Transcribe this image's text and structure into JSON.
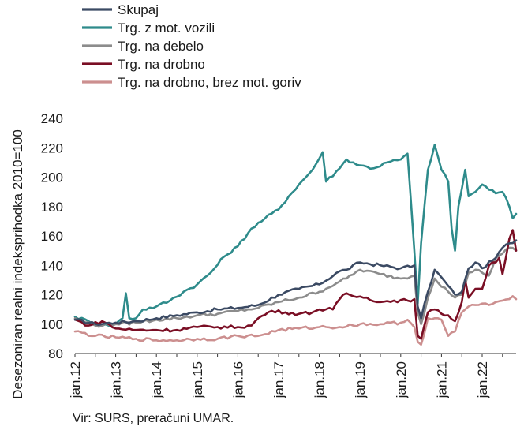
{
  "chart_data": {
    "type": "line",
    "title": "",
    "ylabel": "Desezoniran realni indeksprihodka 2010=100",
    "xlabel": "",
    "ylim": [
      80,
      240
    ],
    "yticks": [
      80,
      100,
      120,
      140,
      160,
      180,
      200,
      220,
      240
    ],
    "x_start": "2012-01",
    "x_end": "2022-06",
    "xticks": [
      "jan.12",
      "jan.13",
      "jan.14",
      "jan.15",
      "jan.16",
      "jan.17",
      "jan.18",
      "jan.19",
      "jan.20",
      "jan.21",
      "jan.22"
    ],
    "legend_position": "top-left",
    "grid": false,
    "source": "Vir: SURS, preračuni UMAR.",
    "series": [
      {
        "name": "Skupaj",
        "color": "#3b4a63",
        "anchors": [
          [
            0,
            103
          ],
          [
            6,
            100
          ],
          [
            12,
            101
          ],
          [
            18,
            102
          ],
          [
            24,
            104
          ],
          [
            30,
            106
          ],
          [
            36,
            108
          ],
          [
            42,
            110
          ],
          [
            48,
            111
          ],
          [
            54,
            113
          ],
          [
            60,
            120
          ],
          [
            66,
            124
          ],
          [
            72,
            127
          ],
          [
            78,
            136
          ],
          [
            80,
            137
          ],
          [
            84,
            142
          ],
          [
            90,
            140
          ],
          [
            96,
            138
          ],
          [
            100,
            140
          ],
          [
            101,
            112
          ],
          [
            102,
            104
          ],
          [
            104,
            122
          ],
          [
            106,
            137
          ],
          [
            110,
            126
          ],
          [
            112,
            120
          ],
          [
            114,
            122
          ],
          [
            116,
            138
          ],
          [
            118,
            142
          ],
          [
            120,
            138
          ],
          [
            124,
            145
          ],
          [
            126,
            152
          ],
          [
            128,
            155
          ],
          [
            130,
            157
          ]
        ]
      },
      {
        "name": "Trg. z mot. vozili",
        "color": "#2e8b8b",
        "anchors": [
          [
            0,
            105
          ],
          [
            4,
            102
          ],
          [
            8,
            99
          ],
          [
            12,
            100
          ],
          [
            14,
            104
          ],
          [
            15,
            121
          ],
          [
            16,
            104
          ],
          [
            18,
            104
          ],
          [
            20,
            110
          ],
          [
            24,
            112
          ],
          [
            28,
            116
          ],
          [
            32,
            122
          ],
          [
            36,
            127
          ],
          [
            40,
            135
          ],
          [
            44,
            146
          ],
          [
            48,
            153
          ],
          [
            52,
            165
          ],
          [
            56,
            172
          ],
          [
            60,
            178
          ],
          [
            63,
            187
          ],
          [
            66,
            195
          ],
          [
            70,
            205
          ],
          [
            73,
            217
          ],
          [
            74,
            197
          ],
          [
            78,
            206
          ],
          [
            80,
            212
          ],
          [
            84,
            208
          ],
          [
            88,
            206
          ],
          [
            92,
            210
          ],
          [
            96,
            212
          ],
          [
            98,
            216
          ],
          [
            100,
            150
          ],
          [
            101,
            114
          ],
          [
            102,
            155
          ],
          [
            104,
            205
          ],
          [
            106,
            222
          ],
          [
            108,
            205
          ],
          [
            110,
            197
          ],
          [
            111,
            165
          ],
          [
            112,
            150
          ],
          [
            113,
            180
          ],
          [
            115,
            205
          ],
          [
            116,
            187
          ],
          [
            118,
            190
          ],
          [
            120,
            195
          ],
          [
            124,
            189
          ],
          [
            126,
            190
          ],
          [
            128,
            180
          ],
          [
            129,
            172
          ],
          [
            130,
            175
          ]
        ]
      },
      {
        "name": "Trg. na debelo",
        "color": "#8c8c8c",
        "anchors": [
          [
            0,
            104
          ],
          [
            6,
            99
          ],
          [
            12,
            100
          ],
          [
            18,
            101
          ],
          [
            24,
            103
          ],
          [
            30,
            104
          ],
          [
            36,
            106
          ],
          [
            42,
            107
          ],
          [
            48,
            109
          ],
          [
            54,
            111
          ],
          [
            60,
            115
          ],
          [
            66,
            118
          ],
          [
            72,
            122
          ],
          [
            78,
            129
          ],
          [
            80,
            131
          ],
          [
            84,
            137
          ],
          [
            90,
            134
          ],
          [
            96,
            131
          ],
          [
            100,
            133
          ],
          [
            101,
            108
          ],
          [
            102,
            100
          ],
          [
            104,
            118
          ],
          [
            106,
            131
          ],
          [
            110,
            122
          ],
          [
            112,
            118
          ],
          [
            114,
            120
          ],
          [
            116,
            135
          ],
          [
            118,
            137
          ],
          [
            120,
            135
          ],
          [
            122,
            133
          ],
          [
            124,
            145
          ],
          [
            126,
            148
          ],
          [
            128,
            152
          ],
          [
            130,
            150
          ]
        ]
      },
      {
        "name": "Trg. na drobno",
        "color": "#7a0e24",
        "anchors": [
          [
            0,
            103
          ],
          [
            4,
            99
          ],
          [
            8,
            102
          ],
          [
            12,
            97
          ],
          [
            18,
            96
          ],
          [
            24,
            96
          ],
          [
            30,
            96
          ],
          [
            36,
            98
          ],
          [
            42,
            98
          ],
          [
            48,
            98
          ],
          [
            52,
            99
          ],
          [
            54,
            104
          ],
          [
            58,
            109
          ],
          [
            62,
            108
          ],
          [
            66,
            107
          ],
          [
            70,
            108
          ],
          [
            72,
            110
          ],
          [
            76,
            110
          ],
          [
            78,
            117
          ],
          [
            80,
            121
          ],
          [
            82,
            119
          ],
          [
            86,
            118
          ],
          [
            90,
            115
          ],
          [
            94,
            116
          ],
          [
            98,
            116
          ],
          [
            100,
            117
          ],
          [
            101,
            92
          ],
          [
            102,
            90
          ],
          [
            104,
            108
          ],
          [
            106,
            110
          ],
          [
            108,
            107
          ],
          [
            110,
            106
          ],
          [
            112,
            102
          ],
          [
            114,
            115
          ],
          [
            115,
            130
          ],
          [
            116,
            118
          ],
          [
            118,
            124
          ],
          [
            120,
            124
          ],
          [
            122,
            140
          ],
          [
            124,
            142
          ],
          [
            125,
            145
          ],
          [
            126,
            134
          ],
          [
            128,
            158
          ],
          [
            129,
            164
          ],
          [
            130,
            150
          ]
        ]
      },
      {
        "name": "Trg. na drobno, brez mot. goriv",
        "color": "#cc8f8f",
        "anchors": [
          [
            0,
            95
          ],
          [
            6,
            92
          ],
          [
            12,
            91
          ],
          [
            18,
            90
          ],
          [
            24,
            89
          ],
          [
            30,
            89
          ],
          [
            36,
            90
          ],
          [
            42,
            90
          ],
          [
            48,
            92
          ],
          [
            54,
            92
          ],
          [
            60,
            96
          ],
          [
            66,
            97
          ],
          [
            72,
            98
          ],
          [
            78,
            98
          ],
          [
            84,
            100
          ],
          [
            90,
            100
          ],
          [
            96,
            101
          ],
          [
            98,
            103
          ],
          [
            100,
            98
          ],
          [
            101,
            88
          ],
          [
            102,
            86
          ],
          [
            104,
            104
          ],
          [
            106,
            104
          ],
          [
            108,
            103
          ],
          [
            110,
            92
          ],
          [
            112,
            95
          ],
          [
            114,
            108
          ],
          [
            116,
            112
          ],
          [
            118,
            113
          ],
          [
            120,
            114
          ],
          [
            122,
            113
          ],
          [
            124,
            115
          ],
          [
            126,
            116
          ],
          [
            128,
            117
          ],
          [
            129,
            119
          ],
          [
            130,
            117
          ]
        ]
      }
    ]
  }
}
